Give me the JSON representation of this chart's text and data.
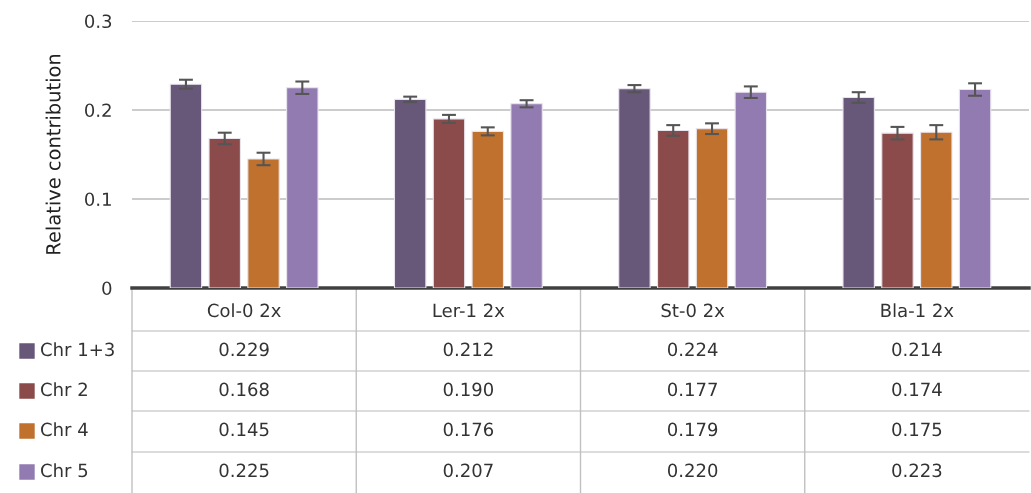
{
  "chart_data": {
    "type": "bar",
    "ylabel": "Relative contribution",
    "categories": [
      "Col-0 2x",
      "Ler-1 2x",
      "St-0 2x",
      "Bla-1 2x"
    ],
    "series": [
      {
        "name": "Chr 1+3",
        "color": "#675778",
        "values": [
          0.229,
          0.212,
          0.224,
          0.214
        ],
        "errors": [
          0.005,
          0.003,
          0.004,
          0.006
        ],
        "value_labels": [
          "0.229",
          "0.212",
          "0.224",
          "0.214"
        ]
      },
      {
        "name": "Chr 2",
        "color": "#8b4b4b",
        "values": [
          0.168,
          0.19,
          0.177,
          0.174
        ],
        "errors": [
          0.0065,
          0.0045,
          0.006,
          0.007
        ],
        "value_labels": [
          "0.168",
          "0.190",
          "0.177",
          "0.174"
        ]
      },
      {
        "name": "Chr 4",
        "color": "#c0712e",
        "values": [
          0.145,
          0.176,
          0.179,
          0.175
        ],
        "errors": [
          0.007,
          0.0045,
          0.006,
          0.008
        ],
        "value_labels": [
          "0.145",
          "0.176",
          "0.179",
          "0.175"
        ]
      },
      {
        "name": "Chr 5",
        "color": "#927bb0",
        "values": [
          0.225,
          0.207,
          0.22,
          0.223
        ],
        "errors": [
          0.007,
          0.004,
          0.0065,
          0.007
        ],
        "value_labels": [
          "0.225",
          "0.207",
          "0.220",
          "0.223"
        ]
      }
    ],
    "ylim": [
      0,
      0.3
    ],
    "yticks": [
      0,
      0.1,
      0.2,
      0.3
    ],
    "grid": "y",
    "legend": "bottom"
  }
}
